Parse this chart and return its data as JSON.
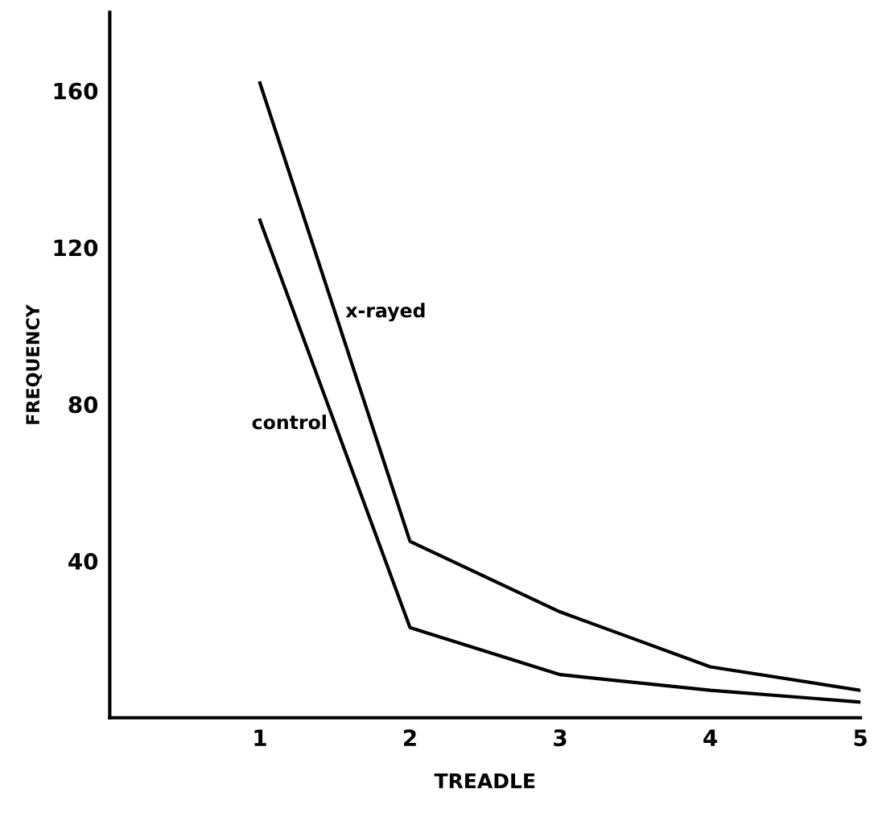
{
  "chart_data": {
    "type": "line",
    "xlabel": "TREADLE",
    "ylabel": "FREQUENCY",
    "x": [
      1,
      2,
      3,
      4,
      5
    ],
    "series": [
      {
        "name": "x-rayed",
        "color": "#000000",
        "values": [
          162,
          45,
          27,
          13,
          7
        ]
      },
      {
        "name": "control",
        "color": "#000000",
        "values": [
          127,
          23,
          11,
          7,
          4
        ]
      }
    ],
    "xlim": [
      0,
      5
    ],
    "ylim": [
      0,
      180
    ],
    "xticks": [
      1,
      2,
      3,
      4,
      5
    ],
    "yticks": [
      40,
      80,
      120,
      160
    ],
    "grid": false,
    "legend": false,
    "marker": "none",
    "line_style": "solid"
  }
}
